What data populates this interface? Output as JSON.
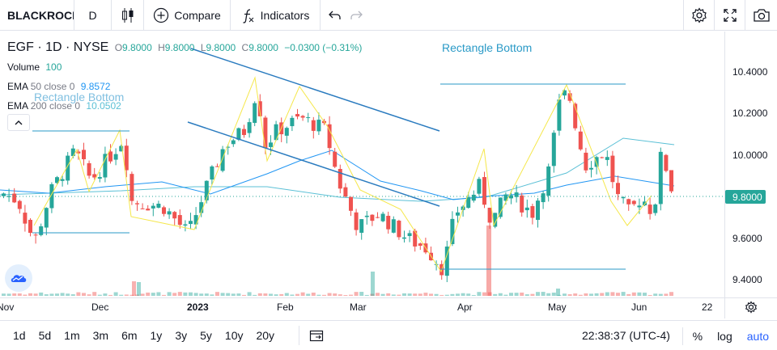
{
  "toolbar": {
    "symbol": "BLACKROCK",
    "interval": "D",
    "compare_label": "Compare",
    "indicators_label": "Indicators"
  },
  "legend": {
    "title": "EGF · 1D · NYSE",
    "ohlc": {
      "o_key": "O",
      "o_val": "9.8000",
      "h_key": "H",
      "h_val": "9.8000",
      "l_key": "L",
      "l_val": "9.8000",
      "c_key": "C",
      "c_val": "9.8000",
      "change": "−0.0300 (−0.31%)"
    },
    "volume_label": "Volume",
    "volume_val": "100",
    "ema50_label": "EMA",
    "ema50_params": "50 close 0",
    "ema50_val": "9.8572",
    "ema200_label": "EMA",
    "ema200_params": "200 close 0",
    "ema200_val": "10.0502"
  },
  "annotations": {
    "rect_bottom_1": "Rectangle Bottom",
    "rect_bottom_2": "Rectangle Bottom"
  },
  "price_axis": {
    "ticks": [
      "10.4000",
      "10.2000",
      "10.0000",
      "9.8000",
      "9.6000",
      "9.4000"
    ],
    "last_price": "9.8000"
  },
  "time_axis": {
    "ticks": [
      "Nov",
      "Dec",
      "2023",
      "Feb",
      "Mar",
      "Apr",
      "May",
      "Jun",
      "22"
    ]
  },
  "bottombar": {
    "ranges": [
      "1d",
      "5d",
      "1m",
      "3m",
      "6m",
      "1y",
      "3y",
      "5y",
      "10y",
      "20y"
    ],
    "clock": "22:38:37 (UTC-4)",
    "percent": "%",
    "log": "log",
    "auto": "auto"
  },
  "colors": {
    "up": "#26a69a",
    "down": "#ef5350",
    "ema50": "#2196f3",
    "ema200": "#5bc0d6",
    "zigzag": "#f5e74a",
    "trendline": "#2a7bbf",
    "accent": "#2962ff"
  },
  "chart_data": {
    "type": "candlestick",
    "symbol": "EGF",
    "interval": "1D",
    "ylim": [
      9.33,
      10.55
    ],
    "last_close": 9.8,
    "series": [
      {
        "name": "EMA 50 close 0",
        "last": 9.8572
      },
      {
        "name": "EMA 200 close 0",
        "last": 10.0502
      }
    ]
  }
}
